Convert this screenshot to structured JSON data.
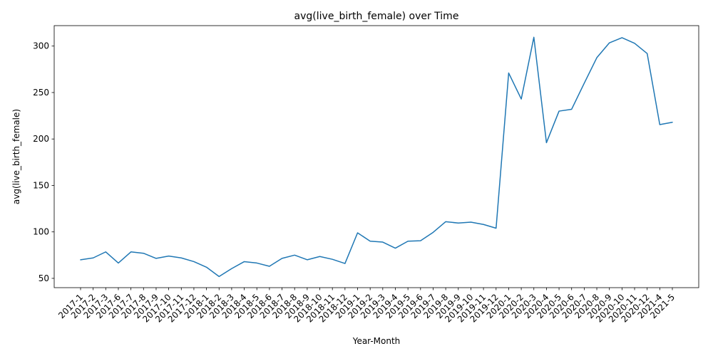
{
  "chart_data": {
    "type": "line",
    "title": "avg(live_birth_female) over Time",
    "xlabel": "Year-Month",
    "ylabel": "avg(live_birth_female)",
    "ylim": [
      40,
      322
    ],
    "yticks": [
      50,
      100,
      150,
      200,
      250,
      300
    ],
    "grid": false,
    "color": "#1f77b4",
    "x": [
      "2017-1",
      "2017-2",
      "2017-3",
      "2017-6",
      "2017-7",
      "2017-8",
      "2017-9",
      "2017-10",
      "2017-11",
      "2017-12",
      "2018-1",
      "2018-2",
      "2018-3",
      "2018-4",
      "2018-5",
      "2018-6",
      "2018-7",
      "2018-8",
      "2018-9",
      "2018-10",
      "2018-11",
      "2018-12",
      "2019-1",
      "2019-2",
      "2019-3",
      "2019-4",
      "2019-5",
      "2019-6",
      "2019-7",
      "2019-8",
      "2019-9",
      "2019-10",
      "2019-11",
      "2019-12",
      "2020-1",
      "2020-2",
      "2020-3",
      "2020-4",
      "2020-5",
      "2020-6",
      "2020-7",
      "2020-8",
      "2020-9",
      "2020-10",
      "2020-11",
      "2020-12",
      "2021-4",
      "2021-5"
    ],
    "y": [
      70,
      72,
      78.5,
      66.5,
      78.5,
      77,
      71.5,
      74,
      72,
      68,
      62,
      52,
      60.5,
      68,
      66.5,
      63,
      71.5,
      75,
      70,
      73.5,
      70.5,
      66,
      99,
      90,
      89,
      82.5,
      90,
      90.5,
      99.5,
      111,
      109.5,
      110.5,
      108,
      104,
      271,
      243,
      309.5,
      196,
      230,
      232,
      260,
      287.5,
      303.5,
      309,
      303,
      292,
      215.5,
      218
    ]
  }
}
